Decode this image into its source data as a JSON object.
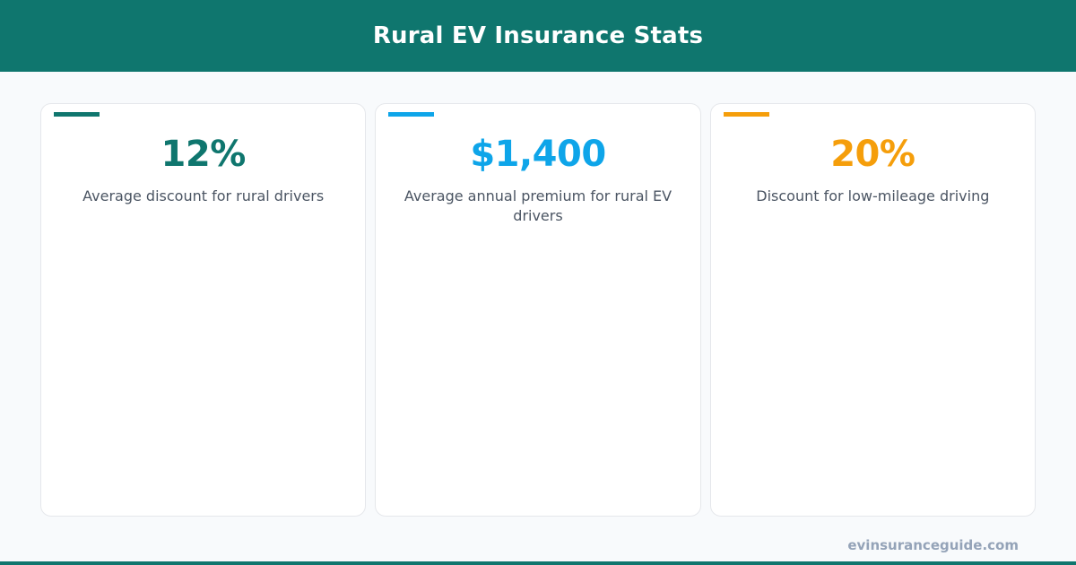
{
  "header": {
    "title": "Rural EV Insurance Stats"
  },
  "stats": [
    {
      "value": "12%",
      "label": "Average discount for rural drivers",
      "color": "#0f766e"
    },
    {
      "value": "$1,400",
      "label": "Average annual premium for rural EV drivers",
      "color": "#0ea5e9"
    },
    {
      "value": "20%",
      "label": "Discount for low-mileage driving",
      "color": "#f59e0b"
    }
  ],
  "footer": {
    "site": "evinsuranceguide.com"
  },
  "colors": {
    "brand": "#0f766e",
    "background": "#f8fafc",
    "label_text": "#4b5563",
    "footer_text": "#94a3b8"
  }
}
